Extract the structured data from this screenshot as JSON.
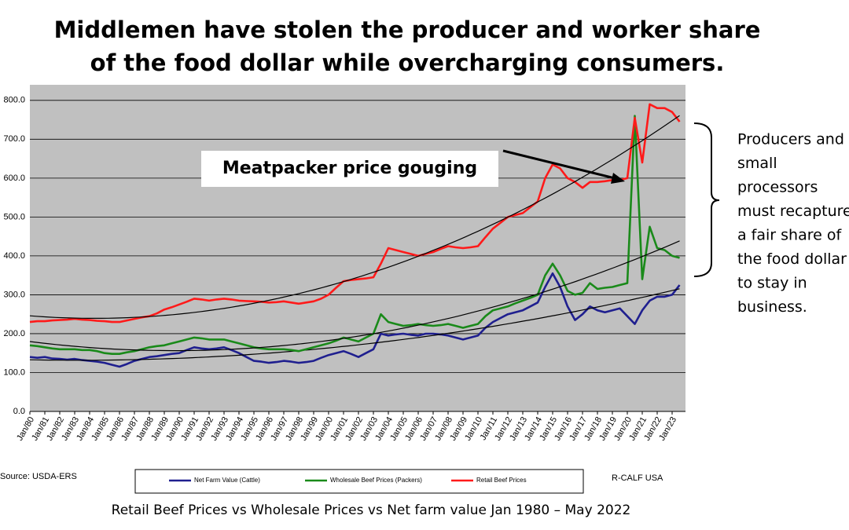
{
  "chart_data": {
    "type": "line",
    "title": [
      "Middlemen have stolen the producer and worker share",
      "of the food dollar while overcharging consumers."
    ],
    "categories": [
      "Jan/80",
      null,
      "Jan/81",
      null,
      "Jan/82",
      null,
      "Jan/83",
      null,
      "Jan/84",
      null,
      "Jan/85",
      null,
      "Jan/86",
      null,
      "Jan/87",
      null,
      "Jan/88",
      null,
      "Jan/89",
      null,
      "Jan/90",
      null,
      "Jan/91",
      null,
      "Jan/92",
      null,
      "Jan/93",
      null,
      "Jan/94",
      null,
      "Jan/95",
      null,
      "Jan/96",
      null,
      "Jan/97",
      null,
      "Jan/98",
      null,
      "Jan/99",
      null,
      "Jan/00",
      null,
      "Jan/01",
      null,
      "Jan/02",
      null,
      "Jan/03",
      null,
      "Jan/04",
      null,
      "Jan/05",
      null,
      "Jan/06",
      null,
      "Jan/07",
      null,
      "Jan/08",
      null,
      "Jan/09",
      null,
      "Jan/10",
      null,
      "Jan/11",
      null,
      "Jan/12",
      null,
      "Jan/13",
      null,
      "Jan/14",
      null,
      "Jan/15",
      null,
      "Jan/16",
      null,
      "Jan/17",
      null,
      "Jan/18",
      null,
      "Jan/19",
      null,
      "Jan/20",
      null,
      "Jan/21",
      null,
      "Jan/22",
      null,
      "Jan/23",
      null
    ],
    "series": [
      {
        "name": "Net Farm Value (Cattle)",
        "color": "#1f1f8f",
        "values": [
          140,
          138,
          140,
          136,
          135,
          133,
          135,
          132,
          130,
          128,
          125,
          120,
          115,
          122,
          130,
          135,
          140,
          142,
          145,
          148,
          150,
          158,
          165,
          162,
          160,
          162,
          165,
          158,
          150,
          140,
          130,
          128,
          125,
          127,
          130,
          128,
          125,
          127,
          130,
          138,
          145,
          150,
          155,
          148,
          140,
          150,
          160,
          200,
          195,
          198,
          200,
          197,
          195,
          200,
          200,
          198,
          195,
          190,
          185,
          190,
          195,
          215,
          230,
          240,
          250,
          255,
          260,
          270,
          280,
          320,
          355,
          320,
          270,
          235,
          250,
          270,
          260,
          255,
          260,
          265,
          245,
          225,
          260,
          285,
          295,
          295,
          300,
          325
        ]
      },
      {
        "name": "Wholesale Beef Prices (Packers)",
        "color": "#1a8a1a",
        "values": [
          170,
          168,
          165,
          162,
          160,
          160,
          160,
          158,
          158,
          155,
          150,
          148,
          148,
          152,
          155,
          160,
          165,
          168,
          170,
          175,
          180,
          185,
          190,
          188,
          185,
          185,
          185,
          180,
          175,
          170,
          165,
          162,
          160,
          160,
          160,
          158,
          155,
          160,
          165,
          170,
          175,
          182,
          190,
          185,
          180,
          190,
          200,
          250,
          230,
          225,
          220,
          222,
          225,
          222,
          220,
          222,
          225,
          220,
          215,
          220,
          225,
          245,
          260,
          265,
          270,
          278,
          285,
          292,
          300,
          350,
          380,
          350,
          310,
          300,
          305,
          330,
          315,
          318,
          320,
          325,
          330,
          760,
          340,
          475,
          420,
          415,
          400,
          395
        ]
      },
      {
        "name": "Retail Beef Prices",
        "color": "#ff1a1a",
        "values": [
          230,
          232,
          232,
          234,
          235,
          236,
          238,
          236,
          235,
          233,
          232,
          230,
          230,
          234,
          238,
          242,
          245,
          252,
          262,
          268,
          275,
          282,
          290,
          288,
          285,
          288,
          290,
          288,
          285,
          284,
          283,
          282,
          280,
          281,
          283,
          280,
          277,
          280,
          283,
          290,
          300,
          318,
          335,
          338,
          340,
          342,
          345,
          380,
          420,
          415,
          410,
          405,
          400,
          405,
          410,
          418,
          425,
          422,
          420,
          422,
          425,
          448,
          470,
          485,
          500,
          505,
          510,
          525,
          540,
          600,
          635,
          625,
          600,
          590,
          575,
          590,
          590,
          592,
          595,
          595,
          600,
          755,
          640,
          790,
          780,
          780,
          770,
          745
        ]
      }
    ],
    "ylim": [
      0,
      840
    ],
    "yticks": [
      {
        "value": 0,
        "label": "0.0"
      },
      {
        "value": 100,
        "label": "100.0"
      },
      {
        "value": 200,
        "label": "200.0"
      },
      {
        "value": 300,
        "label": "300.0"
      },
      {
        "value": 400,
        "label": "400.0"
      },
      {
        "value": 500,
        "label": "500.0"
      },
      {
        "value": 600,
        "label": "600.0"
      },
      {
        "value": 700,
        "label": "700.0"
      },
      {
        "value": 800,
        "label": "800.0"
      }
    ],
    "grid": true,
    "trendline": true,
    "annotation": "Meatpacker price gouging",
    "side_note": [
      "Producers and",
      "small",
      "processors",
      "must recapture",
      "a fair share of",
      "the food dollar",
      "to stay in",
      "business."
    ],
    "source": "Source:  USDA-ERS",
    "credit": "R-CALF USA",
    "caption": "Retail Beef Prices vs Wholesale Prices vs Net farm value Jan 1980 – May 2022"
  }
}
